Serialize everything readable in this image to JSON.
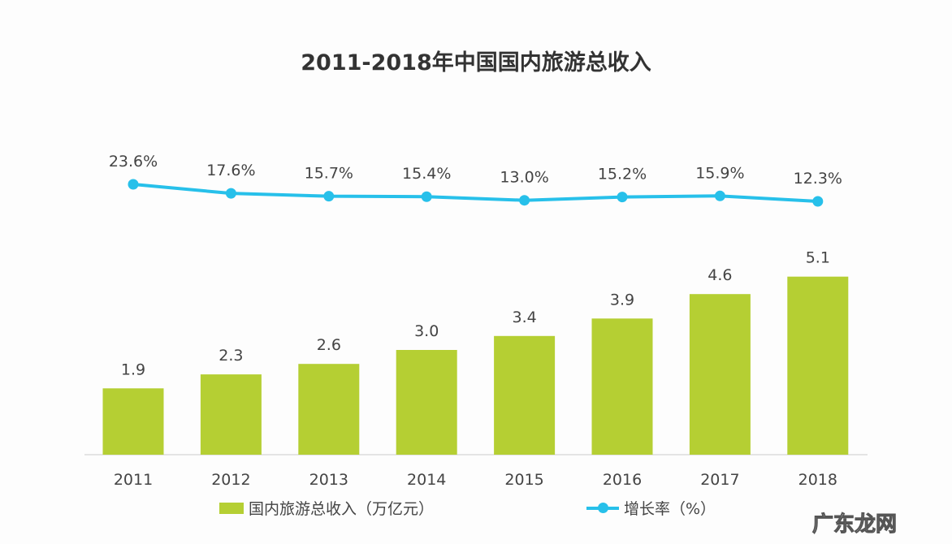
{
  "chart_data": {
    "type": "bar+line",
    "title": "2011-2018年中国国内旅游总收入",
    "categories": [
      "2011",
      "2012",
      "2013",
      "2014",
      "2015",
      "2016",
      "2017",
      "2018"
    ],
    "series": [
      {
        "name": "国内旅游总收入（万亿元）",
        "type": "bar",
        "color": "#b5cf33",
        "values": [
          1.9,
          2.3,
          2.6,
          3.0,
          3.4,
          3.9,
          4.6,
          5.1
        ],
        "labels": [
          "1.9",
          "2.3",
          "2.6",
          "3.0",
          "3.4",
          "3.9",
          "4.6",
          "5.1"
        ]
      },
      {
        "name": "增长率（%）",
        "type": "line",
        "color": "#27c0ea",
        "values": [
          23.6,
          17.6,
          15.7,
          15.4,
          13.0,
          15.2,
          15.9,
          12.3
        ],
        "labels": [
          "23.6%",
          "17.6%",
          "15.7%",
          "15.4%",
          "13.0%",
          "15.2%",
          "15.9%",
          "12.3%"
        ]
      }
    ],
    "grid": false,
    "legend": "bottom"
  },
  "watermark": "广东龙网"
}
